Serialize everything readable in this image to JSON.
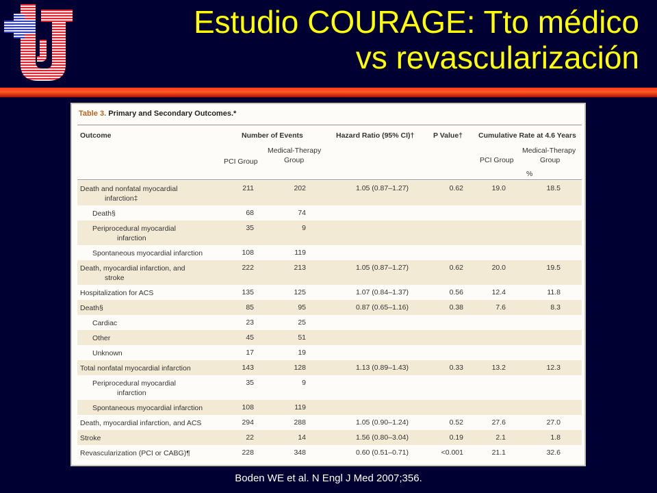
{
  "slide": {
    "title_line1": "Estudio COURAGE: Tto médico",
    "title_line2": "vs revascularización",
    "citation": "Boden WE et al. N Engl J Med 2007;356."
  },
  "table": {
    "caption_label": "Table 3.",
    "caption_text": "Primary and Secondary Outcomes.*",
    "headers": {
      "outcome": "Outcome",
      "events": "Number of Events",
      "hr": "Hazard Ratio (95% CI)†",
      "p": "P Value†",
      "cum": "Cumulative Rate at 4.6 Years",
      "pci": "PCI Group",
      "med1": "Medical-Therapy",
      "med2": "Group",
      "pct": "%"
    },
    "rows": [
      {
        "outcome": "Death and nonfatal myocardial",
        "outcome2": "infarction‡",
        "indent": false,
        "pci": "211",
        "med": "202",
        "hr": "1.05 (0.87–1.27)",
        "p": "0.62",
        "cpci": "19.0",
        "cmed": "18.5"
      },
      {
        "outcome": "Death§",
        "outcome2": "",
        "indent": true,
        "pci": "68",
        "med": "74",
        "hr": "",
        "p": "",
        "cpci": "",
        "cmed": ""
      },
      {
        "outcome": "Periprocedural myocardial",
        "outcome2": "infarction",
        "indent": true,
        "pci": "35",
        "med": "9",
        "hr": "",
        "p": "",
        "cpci": "",
        "cmed": ""
      },
      {
        "outcome": "Spontaneous myocardial infarction",
        "outcome2": "",
        "indent": true,
        "pci": "108",
        "med": "119",
        "hr": "",
        "p": "",
        "cpci": "",
        "cmed": ""
      },
      {
        "outcome": "Death, myocardial infarction, and",
        "outcome2": "stroke",
        "indent": false,
        "pci": "222",
        "med": "213",
        "hr": "1.05 (0.87–1.27)",
        "p": "0.62",
        "cpci": "20.0",
        "cmed": "19.5"
      },
      {
        "outcome": "Hospitalization for ACS",
        "outcome2": "",
        "indent": false,
        "pci": "135",
        "med": "125",
        "hr": "1.07 (0.84–1.37)",
        "p": "0.56",
        "cpci": "12.4",
        "cmed": "11.8"
      },
      {
        "outcome": "Death§",
        "outcome2": "",
        "indent": false,
        "pci": "85",
        "med": "95",
        "hr": "0.87 (0.65–1.16)",
        "p": "0.38",
        "cpci": "7.6",
        "cmed": "8.3"
      },
      {
        "outcome": "Cardiac",
        "outcome2": "",
        "indent": true,
        "pci": "23",
        "med": "25",
        "hr": "",
        "p": "",
        "cpci": "",
        "cmed": ""
      },
      {
        "outcome": "Other",
        "outcome2": "",
        "indent": true,
        "pci": "45",
        "med": "51",
        "hr": "",
        "p": "",
        "cpci": "",
        "cmed": ""
      },
      {
        "outcome": "Unknown",
        "outcome2": "",
        "indent": true,
        "pci": "17",
        "med": "19",
        "hr": "",
        "p": "",
        "cpci": "",
        "cmed": ""
      },
      {
        "outcome": "Total nonfatal myocardial infarction",
        "outcome2": "",
        "indent": false,
        "pci": "143",
        "med": "128",
        "hr": "1.13 (0.89–1.43)",
        "p": "0.33",
        "cpci": "13.2",
        "cmed": "12.3"
      },
      {
        "outcome": "Periprocedural myocardial",
        "outcome2": "infarction",
        "indent": true,
        "pci": "35",
        "med": "9",
        "hr": "",
        "p": "",
        "cpci": "",
        "cmed": ""
      },
      {
        "outcome": "Spontaneous myocardial infarction",
        "outcome2": "",
        "indent": true,
        "pci": "108",
        "med": "119",
        "hr": "",
        "p": "",
        "cpci": "",
        "cmed": ""
      },
      {
        "outcome": "Death, myocardial infarction, and ACS",
        "outcome2": "",
        "indent": false,
        "pci": "294",
        "med": "288",
        "hr": "1.05 (0.90–1.24)",
        "p": "0.52",
        "cpci": "27.6",
        "cmed": "27.0"
      },
      {
        "outcome": "Stroke",
        "outcome2": "",
        "indent": false,
        "pci": "22",
        "med": "14",
        "hr": "1.56 (0.80–3.04)",
        "p": "0.19",
        "cpci": "2.1",
        "cmed": "1.8"
      },
      {
        "outcome": "Revascularization (PCI or CABG)¶",
        "outcome2": "",
        "indent": false,
        "pci": "228",
        "med": "348",
        "hr": "0.60 (0.51–0.71)",
        "p": "<0.001",
        "cpci": "21.1",
        "cmed": "32.6"
      }
    ]
  },
  "colors": {
    "background": "#000033",
    "title": "#ffff00",
    "bar": "#ff3a1a",
    "logo_red": "#e8202a",
    "logo_blue": "#3040c0"
  }
}
